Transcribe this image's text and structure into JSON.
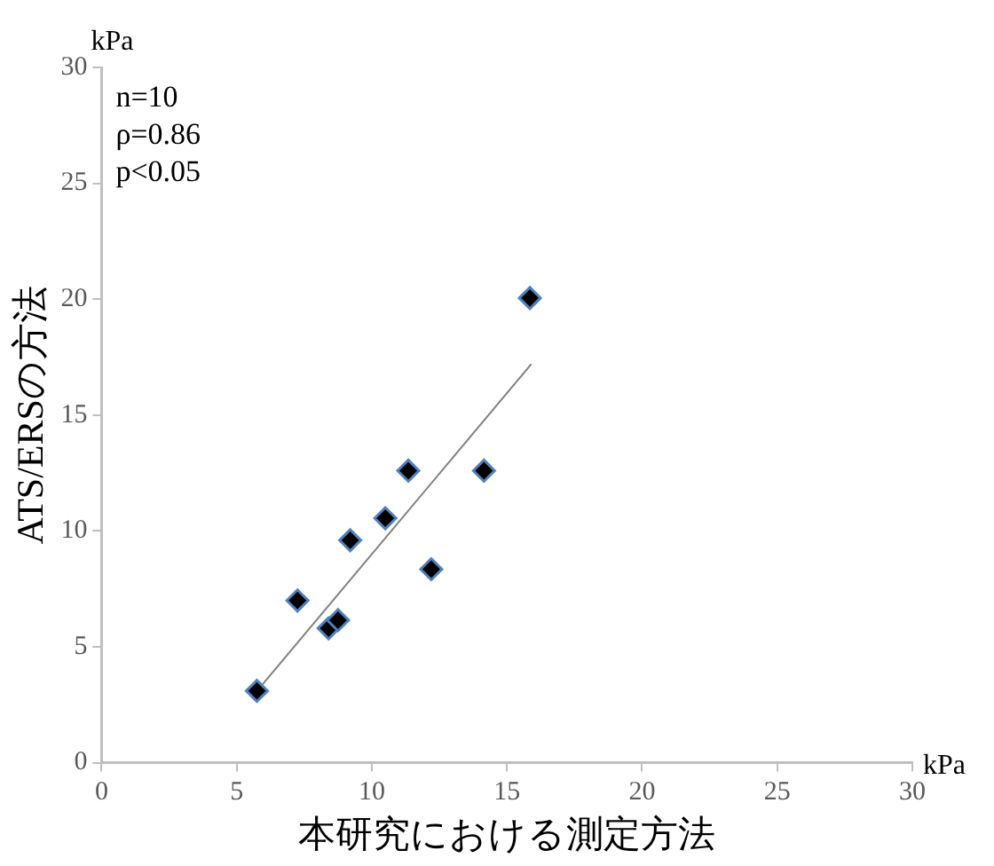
{
  "chart_data": {
    "type": "scatter",
    "xlabel": "本研究における測定方法",
    "ylabel": "ATS/ERSの方法",
    "annotations": [
      "n=10",
      "ρ=0.86",
      "p<0.05",
      "kPa",
      "kPa"
    ],
    "xlim": [
      0,
      30
    ],
    "xticks": [
      0,
      5,
      10,
      15,
      20,
      25,
      30
    ],
    "ylim": [
      0,
      30
    ],
    "yticks": [
      0,
      5,
      10,
      15,
      20,
      25,
      30
    ],
    "grid": false,
    "legend": false,
    "marker": "diamond",
    "series": [
      {
        "type": "scatter",
        "color": "#000000",
        "x": [
          5.75,
          7.25,
          8.4,
          8.75,
          9.2,
          10.5,
          11.35,
          12.2,
          14.15,
          15.85
        ],
        "values": [
          3.1,
          7.0,
          5.8,
          6.15,
          9.6,
          10.55,
          12.6,
          8.35,
          12.6,
          20.05
        ]
      },
      {
        "type": "line",
        "color": "#808080",
        "marker": "none",
        "line_style": "solid",
        "x": [
          5.9,
          15.9
        ],
        "values": [
          3.3,
          17.2
        ]
      }
    ]
  }
}
